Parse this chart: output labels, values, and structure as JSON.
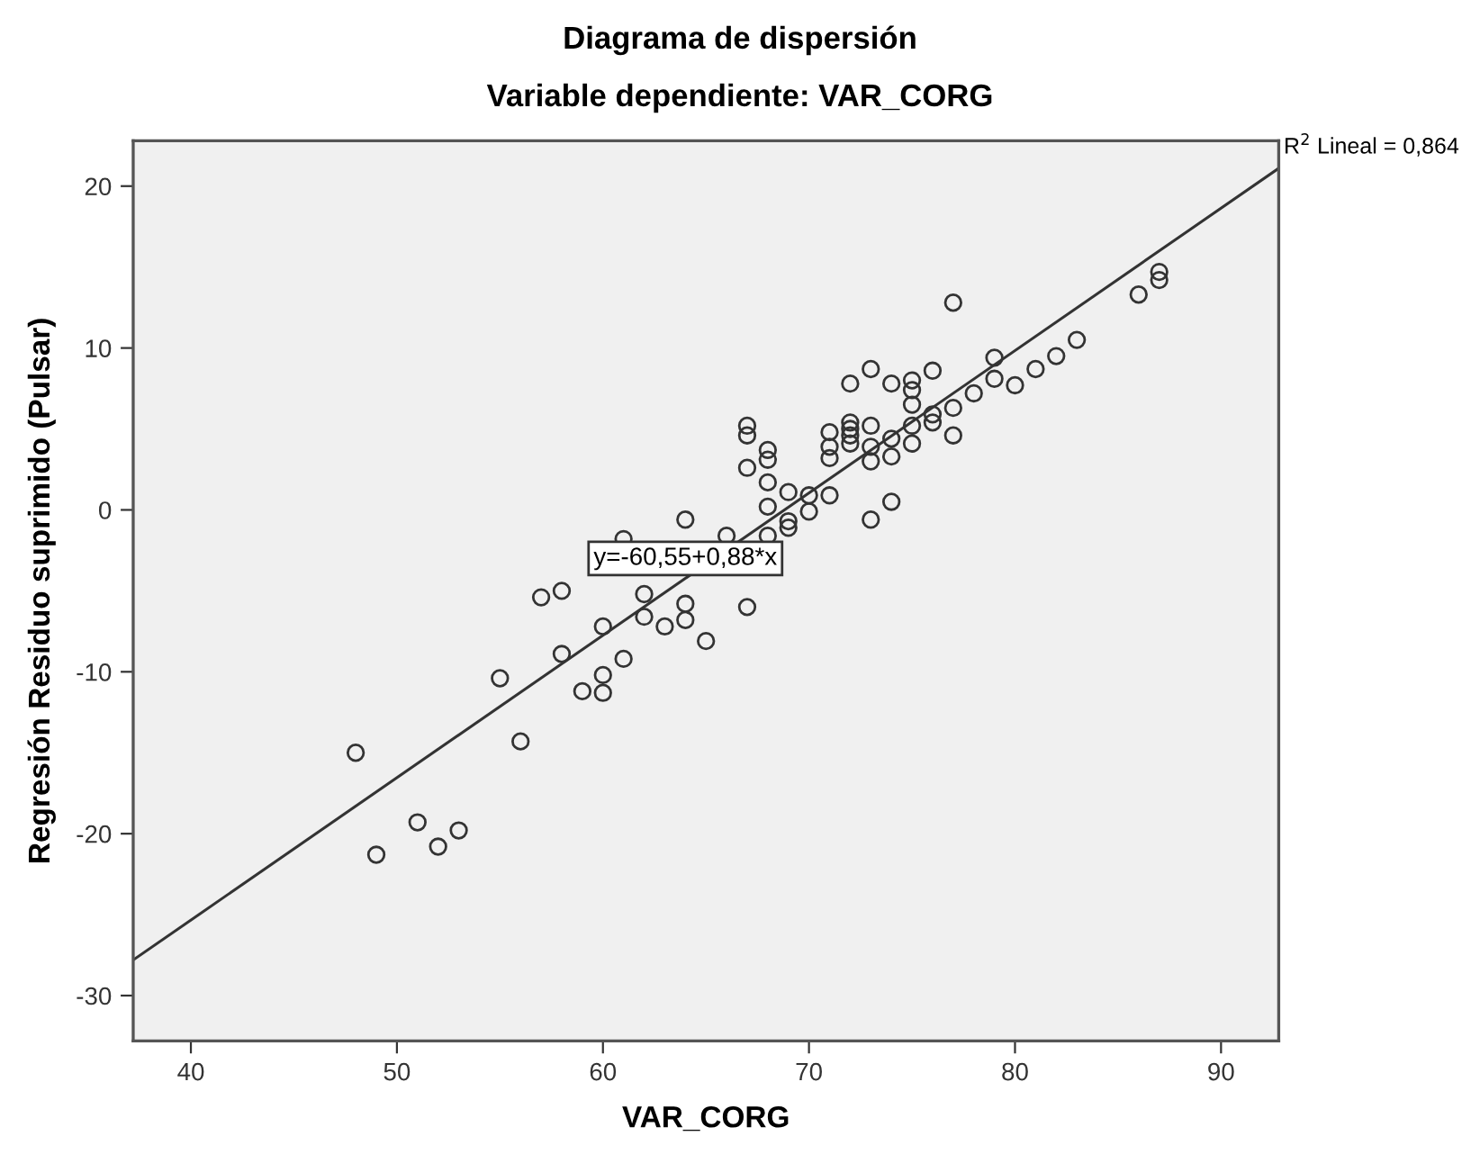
{
  "chart_data": {
    "type": "scatter",
    "title": "Diagrama de dispersión",
    "subtitle": "Variable dependiente: VAR_CORG",
    "xlabel": "VAR_CORG",
    "ylabel": "Regresión Residuo suprimido (Pulsar)",
    "xlim": [
      37.2,
      92.8
    ],
    "ylim": [
      -32.8,
      22.8
    ],
    "xticks": [
      40,
      50,
      60,
      70,
      80,
      90
    ],
    "yticks": [
      -30,
      -20,
      -10,
      0,
      10,
      20
    ],
    "grid": false,
    "legend": false,
    "marker": "circle",
    "series": [
      {
        "color": "#333333",
        "x": [
          48,
          49,
          51,
          52,
          53,
          55,
          56,
          57,
          58,
          58,
          59,
          60,
          60,
          60,
          61,
          62,
          62,
          63,
          64,
          64,
          65,
          67,
          67,
          67,
          67,
          64,
          61,
          66,
          68,
          68,
          68,
          68,
          68,
          69,
          69,
          69,
          70,
          70,
          71,
          71,
          71,
          71,
          72,
          72,
          72,
          72,
          72,
          73,
          73,
          73,
          73,
          73,
          74,
          74,
          74,
          74,
          75,
          75,
          75,
          75,
          75,
          76,
          76,
          76,
          77,
          77,
          77,
          78,
          79,
          79,
          80,
          81,
          82,
          83,
          86,
          87,
          87
        ],
        "values": [
          -15.0,
          -21.3,
          -19.3,
          -20.8,
          -19.8,
          -10.4,
          -14.3,
          -5.4,
          -5.0,
          -8.9,
          -11.2,
          -7.2,
          -10.2,
          -11.3,
          -9.2,
          -6.6,
          -5.2,
          -7.2,
          -5.8,
          -6.8,
          -8.1,
          -6.0,
          5.2,
          4.6,
          2.6,
          -0.6,
          -1.8,
          -1.6,
          3.7,
          3.1,
          1.7,
          0.2,
          -1.6,
          1.1,
          -0.7,
          -1.1,
          0.9,
          -0.1,
          0.9,
          4.8,
          3.9,
          3.2,
          7.8,
          5.4,
          5.0,
          4.6,
          4.1,
          8.7,
          5.2,
          3.9,
          3.0,
          -0.6,
          7.8,
          4.4,
          3.3,
          0.5,
          8.0,
          7.4,
          6.5,
          5.2,
          4.1,
          8.6,
          5.9,
          5.4,
          12.8,
          6.3,
          4.6,
          7.2,
          9.4,
          8.1,
          7.7,
          8.7,
          9.5,
          10.5,
          13.3,
          14.7,
          14.2
        ]
      },
      {
        "type": "line",
        "color": "#333333",
        "marker": "none",
        "line_style": "solid",
        "x": [
          37.2,
          92.8
        ],
        "values": [
          -27.8,
          21.1
        ]
      }
    ],
    "annotations": [
      {
        "text": "R$^{2}$ Lineal = 0,864",
        "x": 92.8,
        "y": 21.1
      },
      "y=-60,55+0,88*x"
    ]
  }
}
